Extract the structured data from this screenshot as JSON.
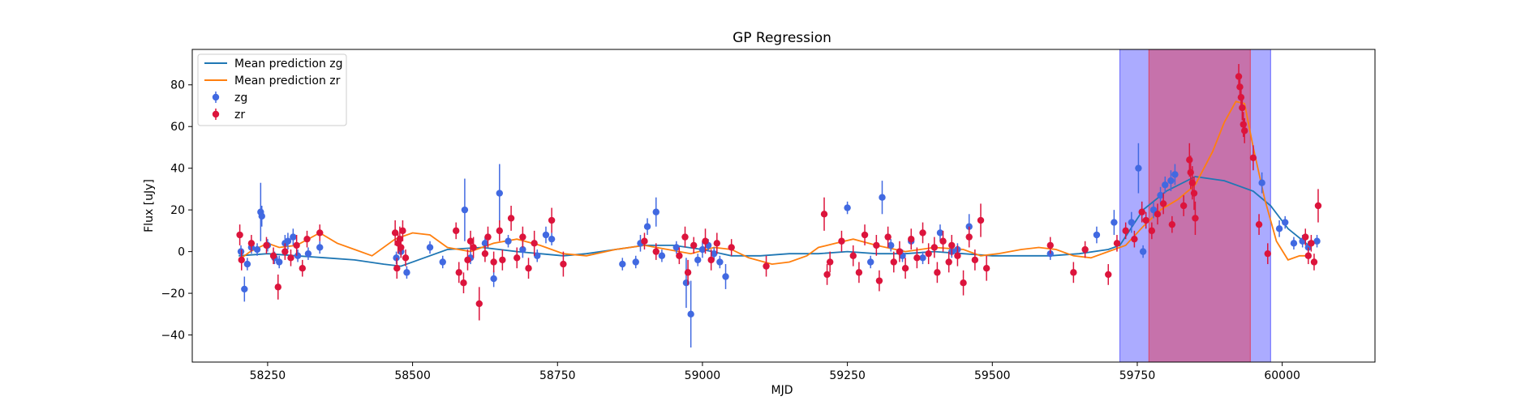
{
  "chart_data": {
    "type": "scatter",
    "title": "GP Regression",
    "xlabel": "MJD",
    "ylabel": "Flux [uJy]",
    "xlim": [
      58120,
      60160
    ],
    "ylim": [
      -53,
      97
    ],
    "xticks": [
      58250,
      58500,
      58750,
      59000,
      59250,
      59500,
      59750,
      60000
    ],
    "yticks": [
      -40,
      -20,
      0,
      20,
      40,
      60,
      80
    ],
    "legend_position": "upper-left",
    "grid": false,
    "shaded_regions": [
      {
        "x0": 59720,
        "x1": 59980,
        "color": "#0000ff",
        "opacity": 0.33
      },
      {
        "x0": 59770,
        "x1": 59945,
        "color": "#ff0000",
        "opacity": 0.33
      }
    ],
    "series": [
      {
        "name": "Mean prediction zg",
        "kind": "line",
        "color": "#1f77b4",
        "x": [
          58200,
          58250,
          58300,
          58350,
          58400,
          58450,
          58480,
          58520,
          58560,
          58620,
          58680,
          58720,
          58760,
          58800,
          58850,
          58900,
          58950,
          59000,
          59050,
          59100,
          59150,
          59200,
          59250,
          59300,
          59350,
          59400,
          59450,
          59500,
          59550,
          59600,
          59650,
          59700,
          59720,
          59760,
          59800,
          59850,
          59900,
          59950,
          59980,
          60010,
          60050
        ],
        "y": [
          -2,
          -1,
          -2,
          -3,
          -4,
          -6,
          -7,
          -3,
          1,
          2,
          0,
          -1,
          -2,
          -1,
          1,
          3,
          3,
          1,
          -2,
          -2,
          -1,
          -1,
          0,
          -1,
          -1,
          0,
          -1,
          -2,
          -2,
          -2,
          -1,
          1,
          3,
          20,
          29,
          36,
          34,
          29,
          22,
          11,
          2
        ]
      },
      {
        "name": "Mean prediction zr",
        "kind": "line",
        "color": "#ff7f0e",
        "x": [
          58200,
          58220,
          58250,
          58270,
          58300,
          58320,
          58340,
          58370,
          58400,
          58430,
          58470,
          58500,
          58530,
          58560,
          58600,
          58640,
          58680,
          58720,
          58760,
          58800,
          58850,
          58900,
          58940,
          58980,
          59020,
          59050,
          59080,
          59120,
          59150,
          59180,
          59200,
          59230,
          59260,
          59300,
          59350,
          59400,
          59450,
          59480,
          59510,
          59550,
          59580,
          59610,
          59640,
          59670,
          59700,
          59730,
          59760,
          59790,
          59820,
          59850,
          59880,
          59900,
          59920,
          59935,
          59950,
          59970,
          59990,
          60010,
          60030,
          60050
        ],
        "y": [
          -4,
          0,
          4,
          2,
          3,
          6,
          9,
          4,
          1,
          -2,
          6,
          9,
          8,
          2,
          0,
          4,
          6,
          3,
          -1,
          -2,
          1,
          3,
          1,
          -1,
          2,
          1,
          -3,
          -6,
          -5,
          -2,
          2,
          4,
          6,
          3,
          0,
          2,
          1,
          -2,
          -1,
          1,
          2,
          1,
          -2,
          -3,
          0,
          3,
          12,
          20,
          25,
          32,
          48,
          62,
          72,
          71,
          50,
          25,
          5,
          -4,
          -2,
          -2
        ]
      },
      {
        "name": "zg",
        "kind": "errorbar",
        "color": "#4169e1",
        "points": [
          [
            58204,
            0,
            3
          ],
          [
            58210,
            -18,
            6
          ],
          [
            58215,
            -6,
            3
          ],
          [
            58222,
            2,
            3
          ],
          [
            58232,
            1,
            3
          ],
          [
            58238,
            19,
            14
          ],
          [
            58240,
            17,
            5
          ],
          [
            58250,
            3,
            3
          ],
          [
            58262,
            -3,
            3
          ],
          [
            58270,
            -5,
            3
          ],
          [
            58280,
            4,
            4
          ],
          [
            58285,
            5,
            4
          ],
          [
            58294,
            7,
            4
          ],
          [
            58302,
            -2,
            3
          ],
          [
            58320,
            -1,
            3
          ],
          [
            58340,
            2,
            3
          ],
          [
            58472,
            -3,
            3
          ],
          [
            58480,
            0,
            3
          ],
          [
            58490,
            -10,
            3
          ],
          [
            58530,
            2,
            3
          ],
          [
            58552,
            -5,
            3
          ],
          [
            58590,
            20,
            15
          ],
          [
            58600,
            -3,
            3
          ],
          [
            58625,
            4,
            3
          ],
          [
            58640,
            -13,
            4
          ],
          [
            58650,
            28,
            14
          ],
          [
            58665,
            5,
            3
          ],
          [
            58690,
            1,
            4
          ],
          [
            58715,
            -2,
            3
          ],
          [
            58730,
            8,
            4
          ],
          [
            58740,
            6,
            3
          ],
          [
            58862,
            -6,
            3
          ],
          [
            58885,
            -5,
            3
          ],
          [
            58893,
            4,
            4
          ],
          [
            58905,
            12,
            4
          ],
          [
            58920,
            19,
            7
          ],
          [
            58930,
            -2,
            3
          ],
          [
            58955,
            2,
            3
          ],
          [
            58972,
            -15,
            12
          ],
          [
            58980,
            -30,
            16
          ],
          [
            58992,
            -4,
            3
          ],
          [
            59000,
            1,
            4
          ],
          [
            59010,
            3,
            3
          ],
          [
            59020,
            -1,
            3
          ],
          [
            59030,
            -5,
            3
          ],
          [
            59040,
            -12,
            6
          ],
          [
            59250,
            21,
            3
          ],
          [
            59290,
            -5,
            3
          ],
          [
            59310,
            26,
            8
          ],
          [
            59325,
            3,
            3
          ],
          [
            59345,
            -2,
            3
          ],
          [
            59360,
            5,
            3
          ],
          [
            59380,
            -3,
            3
          ],
          [
            59410,
            9,
            4
          ],
          [
            59430,
            0,
            3
          ],
          [
            59440,
            1,
            3
          ],
          [
            59460,
            12,
            6
          ],
          [
            59600,
            -1,
            3
          ],
          [
            59680,
            8,
            4
          ],
          [
            59710,
            14,
            6
          ],
          [
            59740,
            14,
            5
          ],
          [
            59752,
            40,
            12
          ],
          [
            59760,
            0,
            3
          ],
          [
            59778,
            20,
            4
          ],
          [
            59790,
            27,
            4
          ],
          [
            59798,
            32,
            4
          ],
          [
            59808,
            34,
            5
          ],
          [
            59815,
            37,
            5
          ],
          [
            59965,
            33,
            5
          ],
          [
            59995,
            11,
            4
          ],
          [
            60005,
            14,
            3
          ],
          [
            60020,
            4,
            3
          ],
          [
            60035,
            5,
            3
          ],
          [
            60045,
            2,
            3
          ],
          [
            60060,
            5,
            3
          ]
        ]
      },
      {
        "name": "zr",
        "kind": "errorbar",
        "color": "#dc143c",
        "points": [
          [
            58202,
            8,
            5
          ],
          [
            58205,
            -4,
            5
          ],
          [
            58222,
            4,
            4
          ],
          [
            58248,
            3,
            4
          ],
          [
            58260,
            -2,
            4
          ],
          [
            58268,
            -17,
            6
          ],
          [
            58280,
            0,
            4
          ],
          [
            58290,
            -3,
            4
          ],
          [
            58300,
            3,
            5
          ],
          [
            58310,
            -8,
            4
          ],
          [
            58318,
            6,
            4
          ],
          [
            58340,
            9,
            4
          ],
          [
            58470,
            9,
            6
          ],
          [
            58473,
            -8,
            5
          ],
          [
            58475,
            4,
            5
          ],
          [
            58478,
            6,
            6
          ],
          [
            58480,
            2,
            5
          ],
          [
            58483,
            10,
            5
          ],
          [
            58488,
            -3,
            4
          ],
          [
            58575,
            10,
            4
          ],
          [
            58580,
            -10,
            5
          ],
          [
            58588,
            -15,
            5
          ],
          [
            58595,
            -4,
            5
          ],
          [
            58600,
            5,
            5
          ],
          [
            58605,
            2,
            5
          ],
          [
            58615,
            -25,
            8
          ],
          [
            58625,
            -1,
            4
          ],
          [
            58630,
            7,
            5
          ],
          [
            58640,
            -5,
            5
          ],
          [
            58650,
            10,
            5
          ],
          [
            58655,
            -4,
            5
          ],
          [
            58670,
            16,
            6
          ],
          [
            58680,
            -3,
            5
          ],
          [
            58690,
            7,
            5
          ],
          [
            58700,
            -8,
            5
          ],
          [
            58710,
            4,
            6
          ],
          [
            58740,
            15,
            6
          ],
          [
            58760,
            -6,
            6
          ],
          [
            58900,
            5,
            4
          ],
          [
            58920,
            0,
            4
          ],
          [
            58960,
            -2,
            4
          ],
          [
            58970,
            7,
            5
          ],
          [
            58975,
            -10,
            6
          ],
          [
            58985,
            3,
            4
          ],
          [
            59005,
            5,
            6
          ],
          [
            59015,
            -4,
            5
          ],
          [
            59025,
            4,
            5
          ],
          [
            59050,
            2,
            4
          ],
          [
            59110,
            -7,
            5
          ],
          [
            59210,
            18,
            8
          ],
          [
            59215,
            -11,
            5
          ],
          [
            59220,
            -5,
            5
          ],
          [
            59240,
            5,
            5
          ],
          [
            59260,
            -2,
            5
          ],
          [
            59270,
            -10,
            5
          ],
          [
            59280,
            8,
            5
          ],
          [
            59300,
            3,
            5
          ],
          [
            59305,
            -14,
            5
          ],
          [
            59320,
            7,
            5
          ],
          [
            59330,
            -5,
            5
          ],
          [
            59340,
            0,
            5
          ],
          [
            59350,
            -8,
            5
          ],
          [
            59360,
            6,
            5
          ],
          [
            59370,
            -3,
            5
          ],
          [
            59380,
            9,
            5
          ],
          [
            59390,
            -1,
            5
          ],
          [
            59400,
            2,
            5
          ],
          [
            59405,
            -10,
            5
          ],
          [
            59415,
            5,
            5
          ],
          [
            59425,
            -5,
            5
          ],
          [
            59430,
            3,
            5
          ],
          [
            59440,
            -2,
            5
          ],
          [
            59450,
            -15,
            6
          ],
          [
            59460,
            7,
            5
          ],
          [
            59470,
            -4,
            5
          ],
          [
            59480,
            15,
            8
          ],
          [
            59490,
            -8,
            6
          ],
          [
            59600,
            3,
            4
          ],
          [
            59640,
            -10,
            5
          ],
          [
            59660,
            1,
            4
          ],
          [
            59700,
            -11,
            5
          ],
          [
            59715,
            4,
            4
          ],
          [
            59730,
            10,
            4
          ],
          [
            59745,
            6,
            4
          ],
          [
            59758,
            19,
            5
          ],
          [
            59765,
            15,
            4
          ],
          [
            59775,
            10,
            4
          ],
          [
            59785,
            18,
            5
          ],
          [
            59795,
            23,
            5
          ],
          [
            59810,
            13,
            4
          ],
          [
            59830,
            22,
            5
          ],
          [
            59840,
            44,
            8
          ],
          [
            59842,
            38,
            8
          ],
          [
            59845,
            33,
            8
          ],
          [
            59848,
            28,
            8
          ],
          [
            59850,
            16,
            8
          ],
          [
            59925,
            84,
            6
          ],
          [
            59927,
            79,
            6
          ],
          [
            59929,
            74,
            6
          ],
          [
            59931,
            69,
            6
          ],
          [
            59933,
            61,
            6
          ],
          [
            59935,
            58,
            6
          ],
          [
            59950,
            45,
            6
          ],
          [
            59960,
            13,
            5
          ],
          [
            59975,
            -1,
            5
          ],
          [
            60040,
            7,
            4
          ],
          [
            60045,
            -2,
            4
          ],
          [
            60050,
            4,
            4
          ],
          [
            60055,
            -5,
            4
          ],
          [
            60062,
            22,
            8
          ]
        ]
      }
    ]
  }
}
